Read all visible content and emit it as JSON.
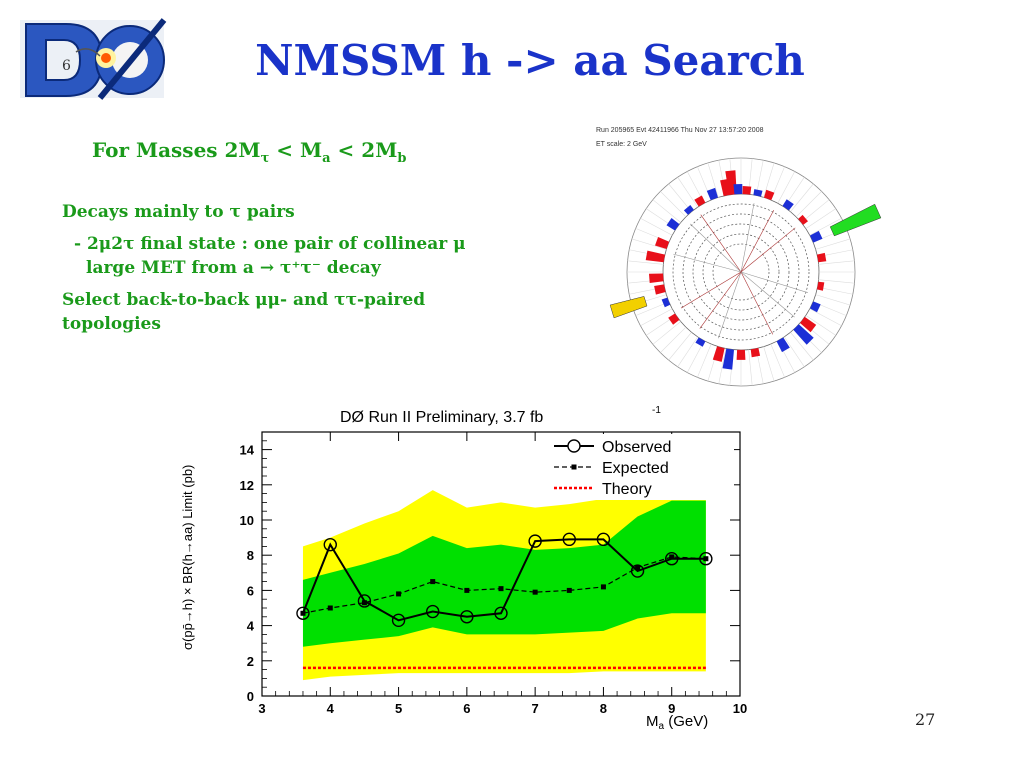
{
  "slide": {
    "title": "NMSSM h -> aa Search",
    "subtitle": {
      "prefix": "For Masses 2M",
      "tau_sub": "τ",
      "mid": " < M",
      "a_sub": "a",
      "mid2": " < 2M",
      "b_sub": "b"
    },
    "bullets": {
      "b1": "Decays mainly to τ pairs",
      "b2a": "- 2μ2τ final state : one pair of collinear μ",
      "b2b": "large MET from a → τ⁺τ⁻ decay",
      "b3": "Select back-to-back μμ- and ττ-paired topologies"
    },
    "page_number": "27"
  },
  "event_display": {
    "header1": "Run 205965 Evt 42411966 Thu Nov 27 13:57:20 2008",
    "header2": "ET scale: 2 GeV"
  },
  "colors": {
    "title": "#1a33c9",
    "text": "#1a9a1a",
    "band_yellow": "#ffff00",
    "band_green": "#00e000",
    "theory": "#ff0000"
  },
  "chart_data": {
    "type": "line",
    "title": "DØ Run II Preliminary, 3.7 fb",
    "title_sup": "-1",
    "xlabel": "M",
    "xlabel_sub": "a",
    "xlabel_unit": " (GeV)",
    "ylabel": "σ(pp̄→h) × BR(h→aa) Limit (pb)",
    "xlim": [
      3,
      10
    ],
    "ylim": [
      0,
      15
    ],
    "xticks": [
      "3",
      "4",
      "5",
      "6",
      "7",
      "8",
      "9",
      "10"
    ],
    "yticks": [
      "0",
      "2",
      "4",
      "6",
      "8",
      "10",
      "12",
      "14"
    ],
    "legend": [
      "Observed",
      "Expected",
      "Theory"
    ],
    "legend_position": "top-right",
    "x": [
      3.6,
      4.0,
      4.5,
      5.0,
      5.5,
      6.0,
      6.5,
      7.0,
      7.5,
      8.0,
      8.5,
      9.0,
      9.5
    ],
    "series": [
      {
        "name": "Observed",
        "values": [
          4.7,
          8.6,
          5.4,
          4.3,
          4.8,
          4.5,
          4.7,
          8.8,
          8.9,
          8.9,
          7.1,
          7.8,
          7.8
        ]
      },
      {
        "name": "Expected",
        "values": [
          4.7,
          5.0,
          5.3,
          5.8,
          6.5,
          6.0,
          6.1,
          5.9,
          6.0,
          6.2,
          7.3,
          7.9,
          7.8
        ]
      },
      {
        "name": "Theory",
        "values": [
          1.6,
          1.6,
          1.6,
          1.6,
          1.6,
          1.6,
          1.6,
          1.6,
          1.6,
          1.6,
          1.6,
          1.6,
          1.6
        ]
      }
    ],
    "band_2sigma": {
      "x": [
        3.6,
        4.0,
        4.5,
        5.0,
        5.5,
        6.0,
        6.5,
        7.0,
        7.5,
        8.0,
        8.5,
        9.0,
        9.5
      ],
      "upper": [
        8.5,
        9.0,
        9.8,
        10.5,
        11.7,
        10.7,
        11.0,
        10.7,
        10.9,
        11.2,
        11.3,
        11.6,
        11.6
      ],
      "lower": [
        0.9,
        1.1,
        1.2,
        1.3,
        1.3,
        1.3,
        1.3,
        1.3,
        1.3,
        1.4,
        1.4,
        1.4,
        1.4
      ]
    },
    "band_1sigma": {
      "x": [
        3.6,
        4.0,
        4.5,
        5.0,
        5.5,
        6.0,
        6.5,
        7.0,
        7.5,
        8.0,
        8.5,
        9.0,
        9.5
      ],
      "upper": [
        6.6,
        7.0,
        7.5,
        8.1,
        9.1,
        8.4,
        8.6,
        8.3,
        8.4,
        8.6,
        10.2,
        11.1,
        11.1
      ],
      "lower": [
        2.8,
        3.0,
        3.2,
        3.4,
        3.9,
        3.5,
        3.5,
        3.5,
        3.6,
        3.7,
        4.4,
        4.7,
        4.7
      ]
    }
  }
}
